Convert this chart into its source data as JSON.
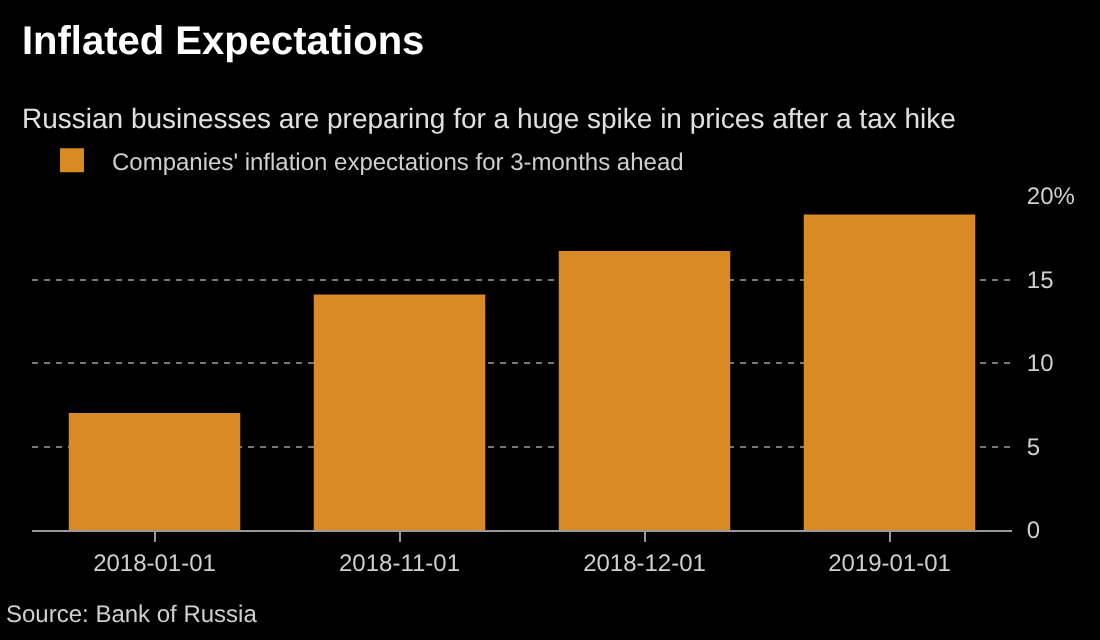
{
  "chart_data": {
    "type": "bar",
    "title": "Inflated Expectations",
    "subtitle": "Russian businesses are preparing for a huge spike in prices after a tax hike",
    "categories": [
      "2018-01-01",
      "2018-11-01",
      "2018-12-01",
      "2019-01-01"
    ],
    "series": [
      {
        "name": "Companies' inflation expectations for 3-months ahead",
        "color": "#d98a24",
        "values": [
          7.0,
          14.1,
          16.7,
          18.9
        ]
      }
    ],
    "ylim": [
      0,
      20
    ],
    "yticks": [
      0,
      5,
      10,
      15,
      {
        "value": 20,
        "label": "20%"
      }
    ],
    "grid": "y",
    "legend": "top left",
    "annotations": [
      "Source: Bank of Russia"
    ]
  }
}
